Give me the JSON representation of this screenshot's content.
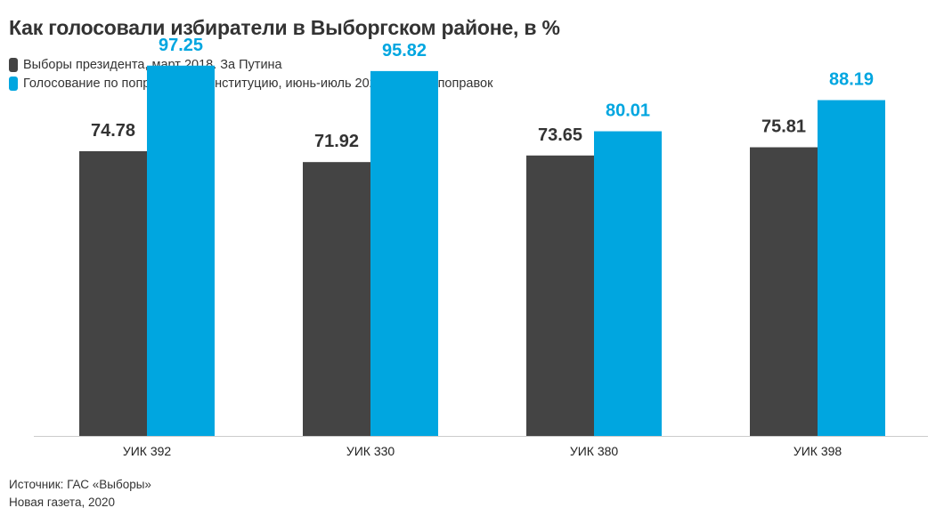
{
  "title": "Как голосовали избиратели в Выборгском районе, в %",
  "source_line1": "Источник: ГАС «Выборы»",
  "source_line2": "Новая газета, 2020",
  "chart_data": {
    "type": "bar",
    "categories": [
      "УИК 392",
      "УИК 330",
      "УИК 380",
      "УИК 398"
    ],
    "series": [
      {
        "name": "Выборы президента, март 2018. За Путина",
        "color": "#444444",
        "label_color": "#333333",
        "values": [
          74.78,
          71.92,
          73.65,
          75.81
        ],
        "labels": [
          "74.78",
          "71.92",
          "73.65",
          "75.81"
        ]
      },
      {
        "name": "Голосование по поправкам в Конституцию, июнь-июль 2020. Против поправок",
        "color": "#00a6e0",
        "label_color": "#00a6e0",
        "values": [
          97.25,
          95.82,
          80.01,
          88.19
        ],
        "labels": [
          "97.25",
          "95.82",
          "80.01",
          "88.19"
        ]
      }
    ],
    "ylim": [
      0,
      100
    ],
    "grid": false,
    "legend_position": "top-left"
  }
}
